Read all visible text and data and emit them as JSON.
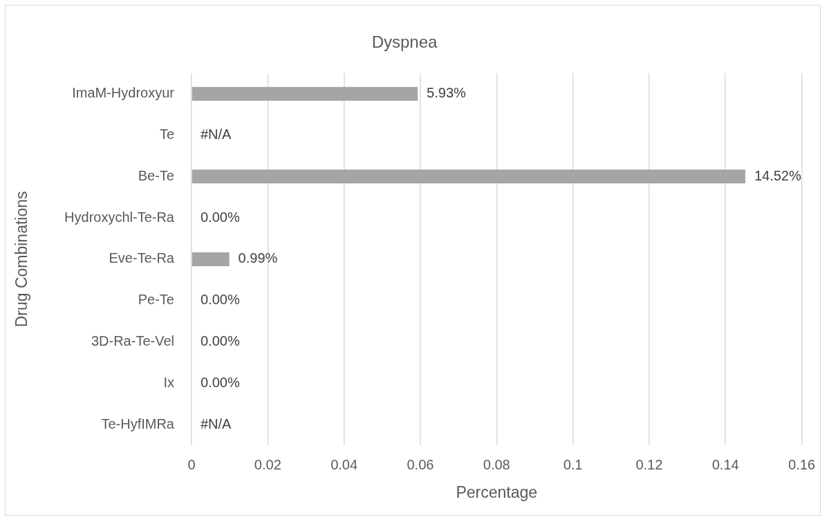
{
  "chart_data": {
    "type": "bar",
    "orientation": "horizontal",
    "title": "Dyspnea",
    "xlabel": "Percentage",
    "ylabel": "Drug Combinations",
    "categories": [
      "ImaM-Hydroxyur",
      "Te",
      "Be-Te",
      "Hydroxychl-Te-Ra",
      "Eve-Te-Ra",
      "Pe-Te",
      "3D-Ra-Te-Vel",
      "Ix",
      "Te-HyfIMRa"
    ],
    "values": [
      0.0593,
      null,
      0.1452,
      0,
      0.0099,
      0,
      0,
      0,
      null
    ],
    "value_labels": [
      "5.93%",
      "#N/A",
      "14.52%",
      "0.00%",
      "0.99%",
      "0.00%",
      "0.00%",
      "0.00%",
      "#N/A"
    ],
    "color": "#a5a5a5",
    "xlim": [
      0,
      0.16
    ],
    "xticks": [
      0,
      0.02,
      0.04,
      0.06,
      0.08,
      0.1,
      0.12,
      0.14,
      0.16
    ],
    "grid": "x"
  }
}
